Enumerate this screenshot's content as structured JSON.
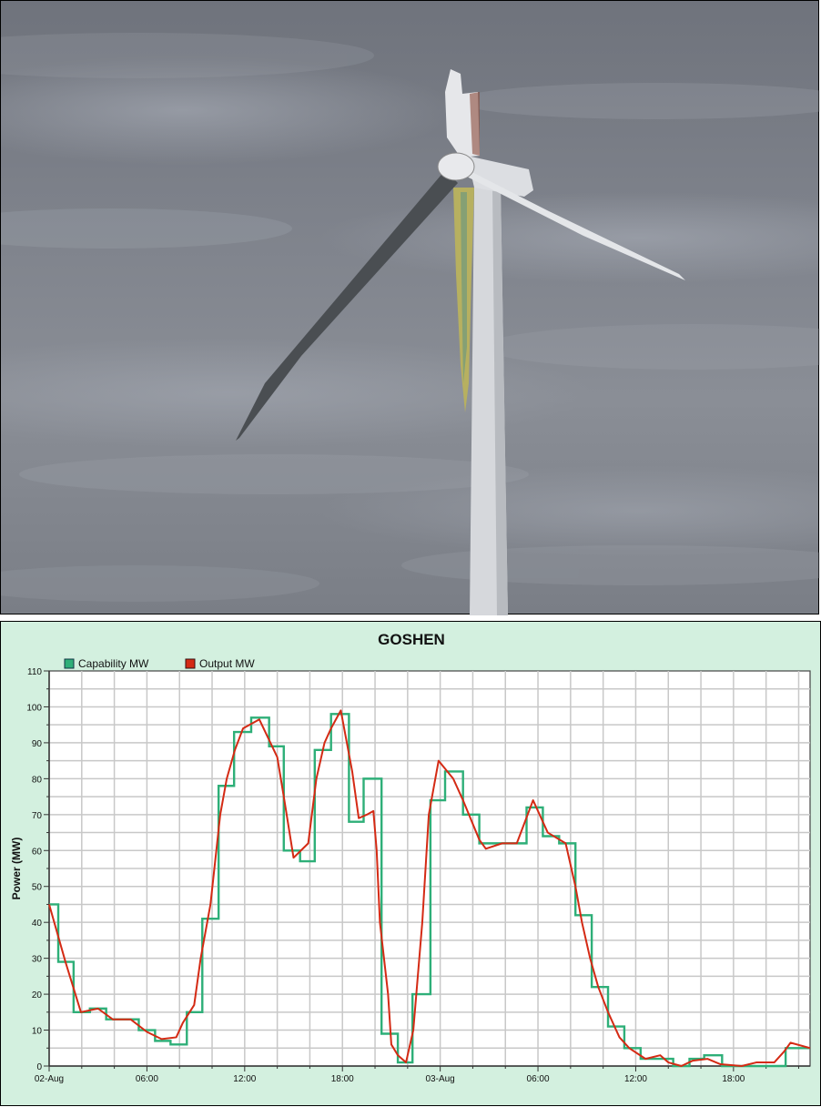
{
  "photo": {
    "subject": "wind-turbine-damaged-blade"
  },
  "chart_data": {
    "type": "line",
    "title": "GOSHEN",
    "ylabel": "Power (MW)",
    "xlabel": "",
    "ylim": [
      0,
      110
    ],
    "yticks": [
      0,
      10,
      20,
      30,
      40,
      50,
      60,
      70,
      80,
      90,
      100,
      110
    ],
    "xlim_hours": [
      0,
      46.7
    ],
    "xticks": [
      {
        "hour": 0,
        "label": "02-Aug"
      },
      {
        "hour": 6,
        "label": "06:00"
      },
      {
        "hour": 12,
        "label": "12:00"
      },
      {
        "hour": 18,
        "label": "18:00"
      },
      {
        "hour": 24,
        "label": "03-Aug"
      },
      {
        "hour": 30,
        "label": "06:00"
      },
      {
        "hour": 36,
        "label": "12:00"
      },
      {
        "hour": 42,
        "label": "18:00"
      }
    ],
    "grid": true,
    "legend_position": "top-left",
    "series": [
      {
        "name": "Capability MW",
        "color": "#2eaf78",
        "style": "step",
        "steps": [
          [
            0,
            45
          ],
          [
            0.56,
            29
          ],
          [
            1.5,
            15
          ],
          [
            2.5,
            16
          ],
          [
            3.5,
            13
          ],
          [
            5.5,
            10
          ],
          [
            6.5,
            7
          ],
          [
            7.45,
            6
          ],
          [
            8.45,
            15
          ],
          [
            9.4,
            41
          ],
          [
            10.4,
            78
          ],
          [
            11.35,
            93
          ],
          [
            12.4,
            97
          ],
          [
            13.5,
            89
          ],
          [
            14.4,
            60
          ],
          [
            15.4,
            57
          ],
          [
            16.3,
            88
          ],
          [
            17.3,
            98
          ],
          [
            18.4,
            68
          ],
          [
            19.3,
            80
          ],
          [
            20.4,
            9
          ],
          [
            21.4,
            1
          ],
          [
            22.3,
            20
          ],
          [
            23.4,
            74
          ],
          [
            24.3,
            82
          ],
          [
            25.4,
            70
          ],
          [
            26.4,
            62
          ],
          [
            29.3,
            72
          ],
          [
            30.3,
            64
          ],
          [
            31.3,
            62
          ],
          [
            32.3,
            42
          ],
          [
            33.3,
            22
          ],
          [
            34.3,
            11
          ],
          [
            35.3,
            5
          ],
          [
            36.3,
            2
          ],
          [
            38.3,
            0
          ],
          [
            39.3,
            2
          ],
          [
            40.2,
            3
          ],
          [
            41.3,
            0
          ],
          [
            45.2,
            5
          ],
          [
            46.7,
            5
          ]
        ]
      },
      {
        "name": "Output MW",
        "color": "#d42a14",
        "style": "line",
        "points": [
          [
            0,
            45
          ],
          [
            1.0,
            29
          ],
          [
            1.95,
            15
          ],
          [
            3.0,
            16
          ],
          [
            3.9,
            13
          ],
          [
            5.0,
            13
          ],
          [
            6.0,
            9.5
          ],
          [
            6.9,
            7.5
          ],
          [
            7.8,
            8
          ],
          [
            8.2,
            12
          ],
          [
            8.9,
            17
          ],
          [
            9.3,
            30
          ],
          [
            9.9,
            45
          ],
          [
            10.5,
            70
          ],
          [
            10.9,
            80
          ],
          [
            11.4,
            88
          ],
          [
            11.9,
            94
          ],
          [
            12.9,
            96.5
          ],
          [
            14.0,
            86
          ],
          [
            14.4,
            75
          ],
          [
            15.0,
            58
          ],
          [
            15.9,
            62
          ],
          [
            16.4,
            80
          ],
          [
            16.9,
            90
          ],
          [
            17.3,
            94
          ],
          [
            17.9,
            99
          ],
          [
            18.6,
            82
          ],
          [
            19.0,
            69
          ],
          [
            19.5,
            70
          ],
          [
            19.9,
            71
          ],
          [
            20.1,
            60
          ],
          [
            20.3,
            40
          ],
          [
            20.8,
            20
          ],
          [
            21.0,
            6
          ],
          [
            21.4,
            3
          ],
          [
            21.9,
            1
          ],
          [
            22.35,
            10
          ],
          [
            22.9,
            40
          ],
          [
            23.3,
            70
          ],
          [
            23.9,
            85
          ],
          [
            24.8,
            80
          ],
          [
            25.4,
            74
          ],
          [
            26.4,
            63
          ],
          [
            26.8,
            60.5
          ],
          [
            27.8,
            62
          ],
          [
            28.7,
            62
          ],
          [
            29.7,
            74
          ],
          [
            30.6,
            65
          ],
          [
            31.7,
            62
          ],
          [
            32.3,
            50
          ],
          [
            32.7,
            40
          ],
          [
            33.2,
            30
          ],
          [
            33.7,
            22
          ],
          [
            34.3,
            15
          ],
          [
            35.0,
            8
          ],
          [
            35.6,
            5
          ],
          [
            36.6,
            2
          ],
          [
            37.5,
            3
          ],
          [
            38.0,
            1
          ],
          [
            38.8,
            0
          ],
          [
            39.5,
            1.5
          ],
          [
            40.4,
            2
          ],
          [
            41.2,
            0.5
          ],
          [
            42.5,
            0
          ],
          [
            43.4,
            1
          ],
          [
            44.5,
            1
          ],
          [
            45.1,
            4
          ],
          [
            45.5,
            6.5
          ],
          [
            46.7,
            5
          ]
        ]
      }
    ]
  }
}
